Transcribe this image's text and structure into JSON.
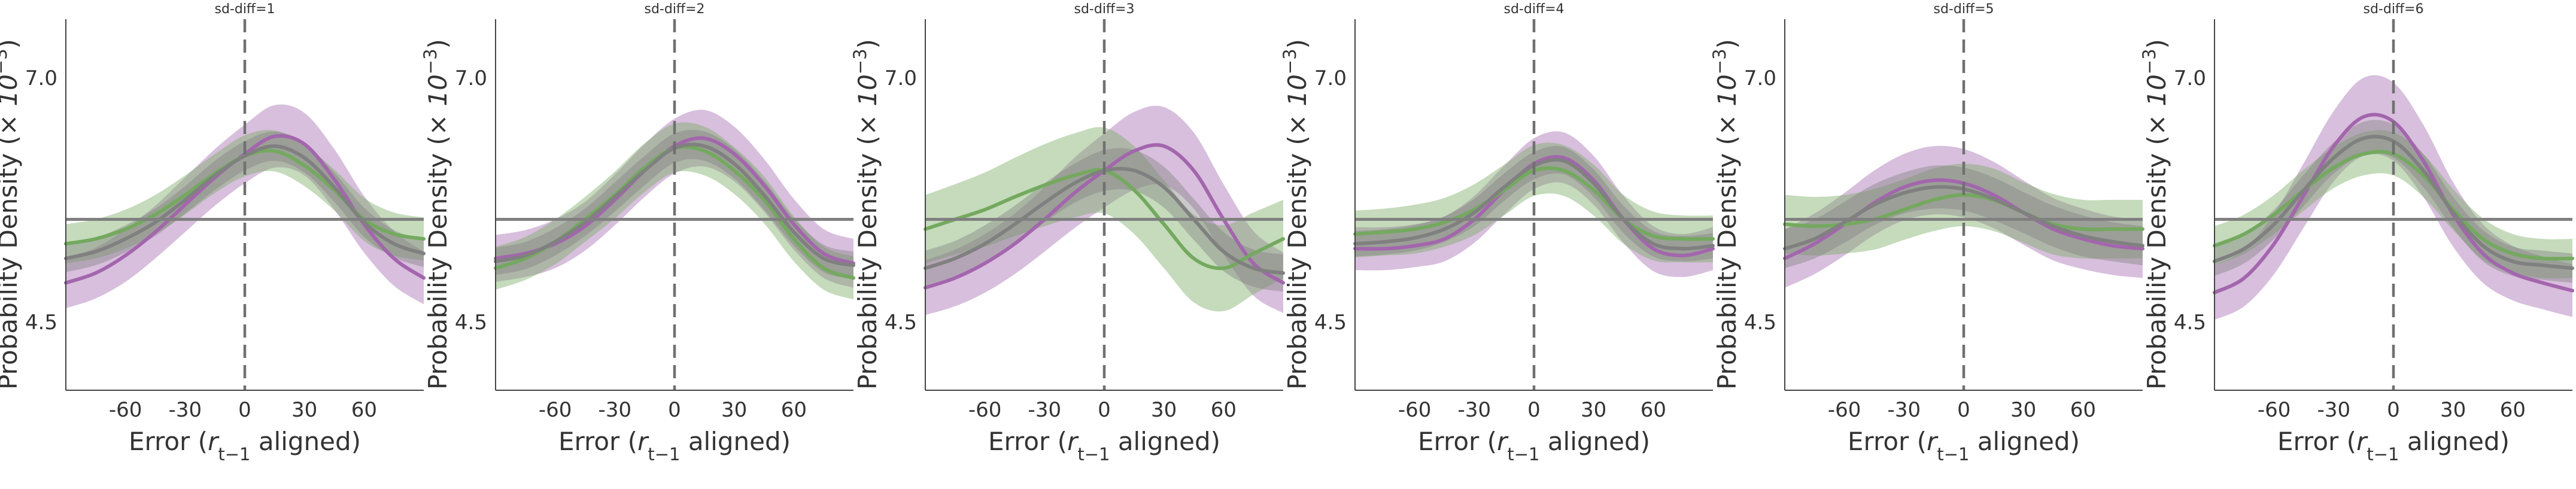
{
  "chart_data": [
    {
      "type": "line",
      "title": "sd-diff=1",
      "xlabel": "Error ($r_{t-1}$ aligned)",
      "ylabel": "Probability Density ($\\times 10^{-3}$)",
      "xlim": [
        -90,
        90
      ],
      "ylim": [
        3.8,
        7.6
      ],
      "xticks": [
        "-60",
        "-30",
        "0",
        "30",
        "60"
      ],
      "yticks": [
        "4.5",
        "7.0"
      ],
      "hline": 5.55,
      "vline": 0,
      "x": [
        -90,
        -75,
        -60,
        -45,
        -30,
        -15,
        0,
        15,
        30,
        45,
        60,
        75,
        90
      ],
      "series": [
        {
          "color": "#a366ad",
          "values": [
            4.9,
            5.0,
            5.18,
            5.42,
            5.7,
            5.98,
            6.22,
            6.4,
            6.32,
            5.96,
            5.5,
            5.15,
            4.95
          ],
          "band_halfwidth": [
            0.26,
            0.26,
            0.27,
            0.27,
            0.28,
            0.29,
            0.3,
            0.32,
            0.32,
            0.31,
            0.29,
            0.28,
            0.27
          ]
        },
        {
          "color": "#74a95f",
          "values": [
            5.3,
            5.35,
            5.45,
            5.6,
            5.8,
            6.02,
            6.2,
            6.25,
            6.1,
            5.85,
            5.55,
            5.4,
            5.35
          ],
          "band_halfwidth": [
            0.2,
            0.2,
            0.2,
            0.2,
            0.2,
            0.2,
            0.21,
            0.21,
            0.21,
            0.21,
            0.22,
            0.22,
            0.22
          ]
        },
        {
          "color": "#808080",
          "values": [
            5.15,
            5.22,
            5.35,
            5.52,
            5.75,
            6.0,
            6.2,
            6.3,
            6.18,
            5.88,
            5.52,
            5.3,
            5.2
          ],
          "band_halfwidth": [
            0.14,
            0.14,
            0.14,
            0.14,
            0.14,
            0.15,
            0.15,
            0.15,
            0.15,
            0.15,
            0.15,
            0.14,
            0.14
          ]
        }
      ]
    },
    {
      "type": "line",
      "title": "sd-diff=2",
      "xlabel": "Error ($r_{t-1}$ aligned)",
      "ylabel": "Probability Density ($\\times 10^{-3}$)",
      "xlim": [
        -90,
        90
      ],
      "ylim": [
        3.8,
        7.6
      ],
      "xticks": [
        "-60",
        "-30",
        "0",
        "30",
        "60"
      ],
      "yticks": [
        "4.5",
        "7.0"
      ],
      "hline": 5.55,
      "vline": 0,
      "x": [
        -90,
        -75,
        -60,
        -45,
        -30,
        -15,
        0,
        15,
        30,
        45,
        60,
        75,
        90
      ],
      "series": [
        {
          "color": "#a366ad",
          "values": [
            5.15,
            5.2,
            5.3,
            5.48,
            5.75,
            6.05,
            6.3,
            6.38,
            6.22,
            5.9,
            5.5,
            5.2,
            5.1
          ],
          "band_halfwidth": [
            0.24,
            0.24,
            0.25,
            0.25,
            0.26,
            0.27,
            0.28,
            0.29,
            0.28,
            0.27,
            0.26,
            0.25,
            0.25
          ]
        },
        {
          "color": "#74a95f",
          "values": [
            5.05,
            5.15,
            5.32,
            5.55,
            5.8,
            6.08,
            6.28,
            6.25,
            6.05,
            5.75,
            5.35,
            5.05,
            4.95
          ],
          "band_halfwidth": [
            0.22,
            0.22,
            0.23,
            0.23,
            0.24,
            0.25,
            0.25,
            0.25,
            0.24,
            0.24,
            0.23,
            0.22,
            0.22
          ]
        },
        {
          "color": "#808080",
          "values": [
            5.12,
            5.18,
            5.32,
            5.52,
            5.78,
            6.05,
            6.28,
            6.3,
            6.12,
            5.8,
            5.42,
            5.15,
            5.08
          ],
          "band_halfwidth": [
            0.14,
            0.14,
            0.14,
            0.14,
            0.15,
            0.15,
            0.15,
            0.15,
            0.15,
            0.15,
            0.14,
            0.14,
            0.14
          ]
        }
      ]
    },
    {
      "type": "line",
      "title": "sd-diff=3",
      "xlabel": "Error ($r_{t-1}$ aligned)",
      "ylabel": "Probability Density ($\\times 10^{-3}$)",
      "xlim": [
        -90,
        90
      ],
      "ylim": [
        3.8,
        7.6
      ],
      "xticks": [
        "-60",
        "-30",
        "0",
        "30",
        "60"
      ],
      "yticks": [
        "4.5",
        "7.0"
      ],
      "hline": 5.55,
      "vline": 0,
      "x": [
        -90,
        -75,
        -60,
        -45,
        -30,
        -15,
        0,
        15,
        30,
        45,
        60,
        75,
        90
      ],
      "series": [
        {
          "color": "#a366ad",
          "values": [
            4.85,
            4.95,
            5.1,
            5.3,
            5.55,
            5.82,
            6.05,
            6.25,
            6.3,
            6.05,
            5.55,
            5.1,
            4.9
          ],
          "band_halfwidth": [
            0.28,
            0.29,
            0.3,
            0.31,
            0.33,
            0.36,
            0.38,
            0.4,
            0.4,
            0.39,
            0.36,
            0.33,
            0.31
          ]
        },
        {
          "color": "#74a95f",
          "values": [
            5.45,
            5.55,
            5.65,
            5.78,
            5.9,
            6.0,
            6.05,
            5.85,
            5.5,
            5.15,
            5.05,
            5.2,
            5.35
          ],
          "band_halfwidth": [
            0.35,
            0.36,
            0.38,
            0.4,
            0.42,
            0.43,
            0.44,
            0.45,
            0.45,
            0.45,
            0.44,
            0.42,
            0.4
          ]
        },
        {
          "color": "#808080",
          "values": [
            5.05,
            5.15,
            5.3,
            5.5,
            5.72,
            5.92,
            6.05,
            6.05,
            5.88,
            5.55,
            5.22,
            5.05,
            5.0
          ],
          "band_halfwidth": [
            0.18,
            0.18,
            0.19,
            0.19,
            0.2,
            0.2,
            0.21,
            0.21,
            0.21,
            0.21,
            0.2,
            0.19,
            0.19
          ]
        }
      ]
    },
    {
      "type": "line",
      "title": "sd-diff=4",
      "xlabel": "Error ($r_{t-1}$ aligned)",
      "ylabel": "Probability Density ($\\times 10^{-3}$)",
      "xlim": [
        -90,
        90
      ],
      "ylim": [
        3.8,
        7.6
      ],
      "xticks": [
        "-60",
        "-30",
        "0",
        "30",
        "60"
      ],
      "yticks": [
        "4.5",
        "7.0"
      ],
      "hline": 5.55,
      "vline": 0,
      "x": [
        -90,
        -75,
        -60,
        -45,
        -30,
        -15,
        0,
        15,
        30,
        45,
        60,
        75,
        90
      ],
      "series": [
        {
          "color": "#a366ad",
          "values": [
            5.25,
            5.25,
            5.28,
            5.35,
            5.55,
            5.85,
            6.12,
            6.18,
            5.95,
            5.55,
            5.25,
            5.18,
            5.25
          ],
          "band_halfwidth": [
            0.22,
            0.22,
            0.22,
            0.23,
            0.24,
            0.25,
            0.26,
            0.26,
            0.25,
            0.24,
            0.23,
            0.22,
            0.22
          ]
        },
        {
          "color": "#74a95f",
          "values": [
            5.4,
            5.42,
            5.45,
            5.52,
            5.65,
            5.85,
            6.05,
            6.05,
            5.85,
            5.55,
            5.38,
            5.35,
            5.35
          ],
          "band_halfwidth": [
            0.24,
            0.24,
            0.25,
            0.25,
            0.26,
            0.26,
            0.26,
            0.26,
            0.26,
            0.25,
            0.25,
            0.24,
            0.24
          ]
        },
        {
          "color": "#808080",
          "values": [
            5.3,
            5.32,
            5.36,
            5.45,
            5.62,
            5.88,
            6.1,
            6.15,
            5.92,
            5.55,
            5.3,
            5.25,
            5.28
          ],
          "band_halfwidth": [
            0.13,
            0.13,
            0.13,
            0.13,
            0.14,
            0.14,
            0.14,
            0.14,
            0.14,
            0.14,
            0.13,
            0.13,
            0.13
          ]
        }
      ]
    },
    {
      "type": "line",
      "title": "sd-diff=5",
      "xlabel": "Error ($r_{t-1}$ aligned)",
      "ylabel": "Probability Density ($\\times 10^{-3}$)",
      "xlim": [
        -90,
        90
      ],
      "ylim": [
        3.8,
        7.6
      ],
      "xticks": [
        "-60",
        "-30",
        "0",
        "30",
        "60"
      ],
      "yticks": [
        "4.5",
        "7.0"
      ],
      "hline": 5.55,
      "vline": 0,
      "x": [
        -90,
        -75,
        -60,
        -45,
        -30,
        -15,
        0,
        15,
        30,
        45,
        60,
        75,
        90
      ],
      "series": [
        {
          "color": "#a366ad",
          "values": [
            5.15,
            5.3,
            5.5,
            5.72,
            5.88,
            5.95,
            5.92,
            5.8,
            5.62,
            5.45,
            5.35,
            5.28,
            5.25
          ],
          "band_halfwidth": [
            0.3,
            0.31,
            0.32,
            0.33,
            0.34,
            0.35,
            0.35,
            0.34,
            0.33,
            0.32,
            0.31,
            0.3,
            0.3
          ]
        },
        {
          "color": "#74a95f",
          "values": [
            5.5,
            5.48,
            5.5,
            5.55,
            5.65,
            5.75,
            5.8,
            5.75,
            5.62,
            5.5,
            5.45,
            5.45,
            5.45
          ],
          "band_halfwidth": [
            0.3,
            0.3,
            0.3,
            0.31,
            0.31,
            0.32,
            0.32,
            0.32,
            0.31,
            0.31,
            0.3,
            0.3,
            0.3
          ]
        },
        {
          "color": "#808080",
          "values": [
            5.25,
            5.35,
            5.52,
            5.7,
            5.82,
            5.88,
            5.86,
            5.76,
            5.62,
            5.48,
            5.38,
            5.32,
            5.28
          ],
          "band_halfwidth": [
            0.2,
            0.2,
            0.21,
            0.21,
            0.21,
            0.22,
            0.22,
            0.22,
            0.21,
            0.21,
            0.21,
            0.2,
            0.2
          ]
        }
      ]
    },
    {
      "type": "line",
      "title": "sd-diff=6",
      "xlabel": "Error ($r_{t-1}$ aligned)",
      "ylabel": "Probability Density ($\\times 10^{-3}$)",
      "xlim": [
        -90,
        90
      ],
      "ylim": [
        3.8,
        7.6
      ],
      "xticks": [
        "-60",
        "-30",
        "0",
        "30",
        "60"
      ],
      "yticks": [
        "4.5",
        "7.0"
      ],
      "hline": 5.55,
      "vline": 0,
      "x": [
        -90,
        -75,
        -60,
        -45,
        -30,
        -15,
        0,
        15,
        30,
        45,
        60,
        75,
        90
      ],
      "series": [
        {
          "color": "#a366ad",
          "values": [
            4.8,
            4.95,
            5.3,
            5.8,
            6.3,
            6.6,
            6.55,
            6.15,
            5.6,
            5.2,
            5.0,
            4.9,
            4.82
          ],
          "band_halfwidth": [
            0.28,
            0.29,
            0.31,
            0.33,
            0.36,
            0.4,
            0.4,
            0.37,
            0.33,
            0.3,
            0.28,
            0.27,
            0.27
          ]
        },
        {
          "color": "#74a95f",
          "values": [
            5.28,
            5.4,
            5.6,
            5.85,
            6.08,
            6.22,
            6.22,
            6.0,
            5.65,
            5.35,
            5.2,
            5.15,
            5.15
          ],
          "band_halfwidth": [
            0.2,
            0.2,
            0.2,
            0.21,
            0.21,
            0.22,
            0.22,
            0.22,
            0.21,
            0.21,
            0.2,
            0.2,
            0.2
          ]
        },
        {
          "color": "#808080",
          "values": [
            5.12,
            5.25,
            5.5,
            5.85,
            6.18,
            6.38,
            6.35,
            6.05,
            5.62,
            5.28,
            5.12,
            5.08,
            5.05
          ],
          "band_halfwidth": [
            0.15,
            0.15,
            0.15,
            0.16,
            0.16,
            0.17,
            0.17,
            0.17,
            0.16,
            0.16,
            0.15,
            0.15,
            0.15
          ]
        }
      ]
    }
  ]
}
